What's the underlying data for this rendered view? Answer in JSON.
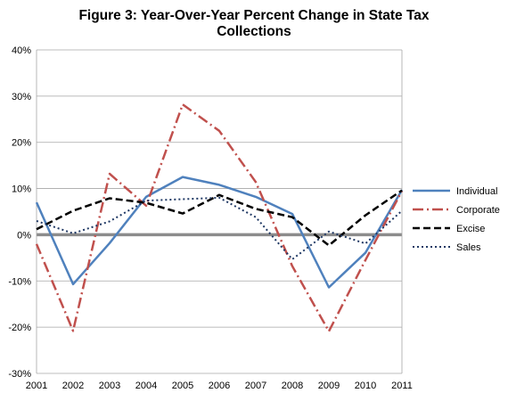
{
  "chart_data": {
    "type": "line",
    "title_line1": "Figure 3: Year-Over-Year Percent Change in State Tax",
    "title_line2": "Collections",
    "x": [
      "2001",
      "2002",
      "2003",
      "2004",
      "2005",
      "2006",
      "2007",
      "2008",
      "2009",
      "2010",
      "2011"
    ],
    "ylim": [
      -30,
      40
    ],
    "yticks": [
      40,
      30,
      20,
      10,
      0,
      -10,
      -20,
      -30
    ],
    "ytick_labels": [
      "40%",
      "30%",
      "20%",
      "10%",
      "0%",
      "-10%",
      "-20%",
      "-30%"
    ],
    "grid": true,
    "legend_position": "right",
    "series": [
      {
        "name": "Individual",
        "color": "#4f81bd",
        "dash": "solid",
        "values": [
          7.0,
          -10.7,
          -1.8,
          8.2,
          12.5,
          10.8,
          8.2,
          4.5,
          -11.4,
          -3.9,
          9.7
        ]
      },
      {
        "name": "Corporate",
        "color": "#c0504d",
        "dash": "dashdot",
        "values": [
          -2.0,
          -20.8,
          13.2,
          6.3,
          28.2,
          22.5,
          11.4,
          -6.8,
          -20.9,
          -5.5,
          9.5
        ]
      },
      {
        "name": "Excise",
        "color": "#000000",
        "dash": "dashed",
        "values": [
          1.2,
          5.2,
          7.9,
          6.9,
          4.6,
          8.6,
          5.6,
          3.8,
          -2.3,
          4.2,
          9.6
        ]
      },
      {
        "name": "Sales",
        "color": "#1f3864",
        "dash": "dotted",
        "values": [
          3.0,
          0.3,
          2.9,
          7.4,
          7.7,
          8.0,
          3.8,
          -5.3,
          0.7,
          -1.9,
          5.2
        ]
      }
    ]
  }
}
